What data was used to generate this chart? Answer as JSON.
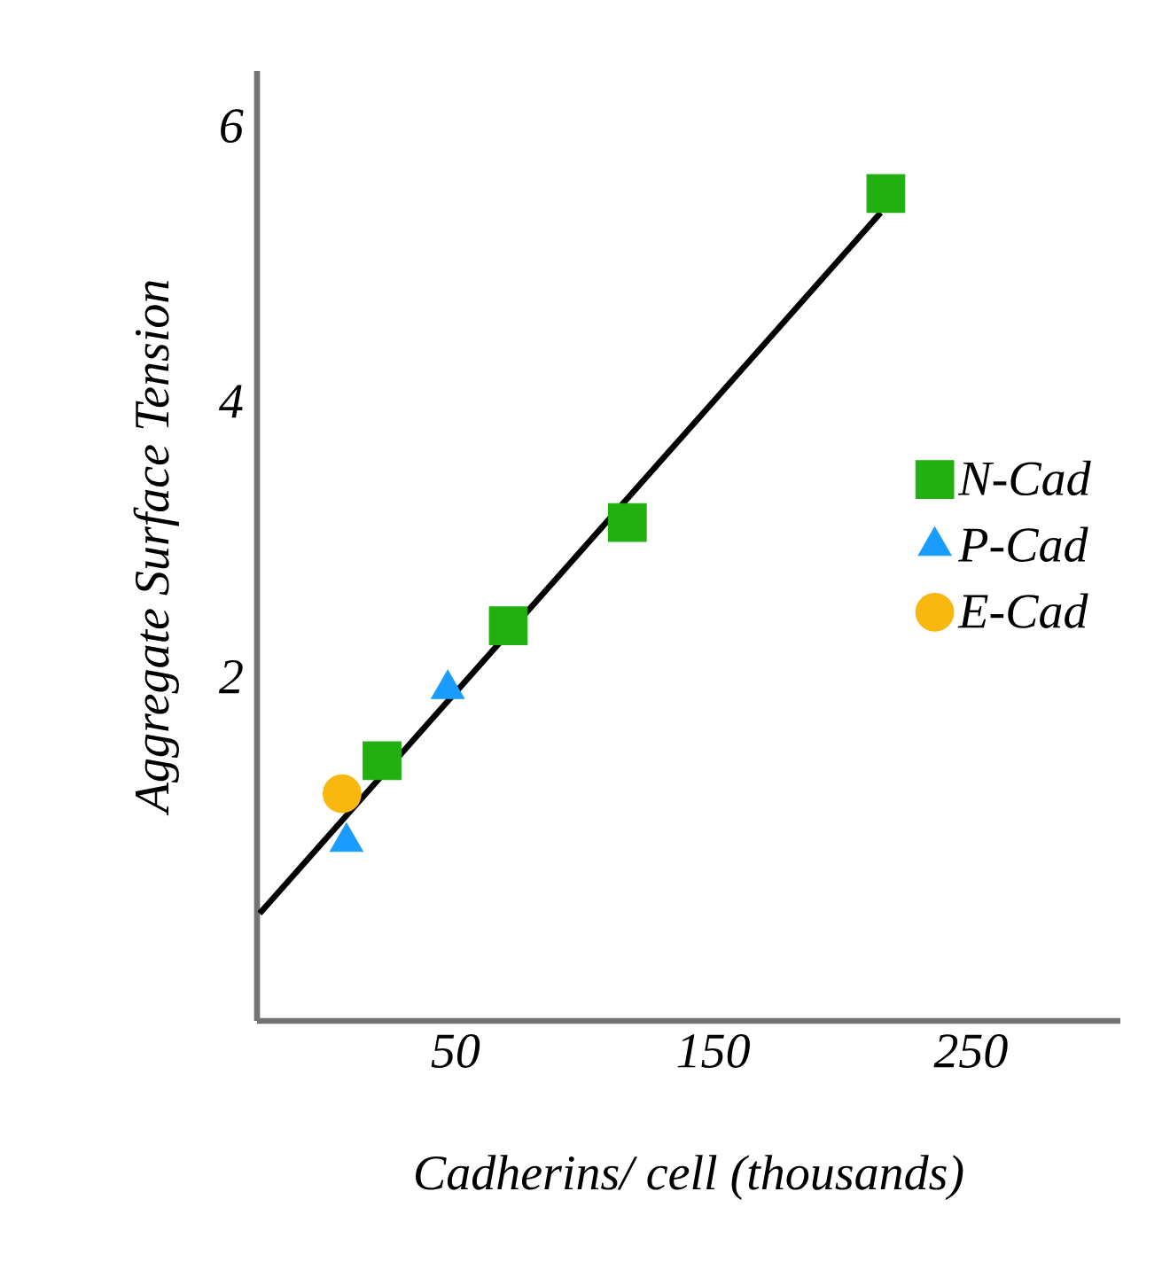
{
  "chart_data": {
    "type": "scatter",
    "xlabel": "Cadherins/ cell (thousands)",
    "ylabel": "Aggregate Surface Tension",
    "xlim": [
      -27,
      308
    ],
    "ylim": [
      -0.5,
      6.4
    ],
    "xticks": [
      50,
      150,
      250
    ],
    "yticks": [
      2,
      4,
      6
    ],
    "grid": false,
    "legend": "right",
    "series": [
      {
        "name": "N-Cad",
        "color": "#22b010",
        "marker": "square",
        "x": [
          21.5,
          70.5,
          116.7,
          217
        ],
        "values": [
          1.39,
          2.37,
          3.12,
          5.51
        ]
      },
      {
        "name": "P-Cad",
        "color": "#1a9cff",
        "marker": "triangle",
        "x": [
          7.7,
          47
        ],
        "values": [
          0.8,
          1.91
        ]
      },
      {
        "name": "E-Cad",
        "color": "#f8b810",
        "marker": "circle",
        "x": [
          6
        ],
        "values": [
          1.15
        ]
      },
      {
        "type": "line",
        "color": "#000000",
        "marker": "none",
        "line_style": "solid",
        "x": [
          -26,
          215
        ],
        "values": [
          0.28,
          5.37
        ]
      }
    ]
  }
}
